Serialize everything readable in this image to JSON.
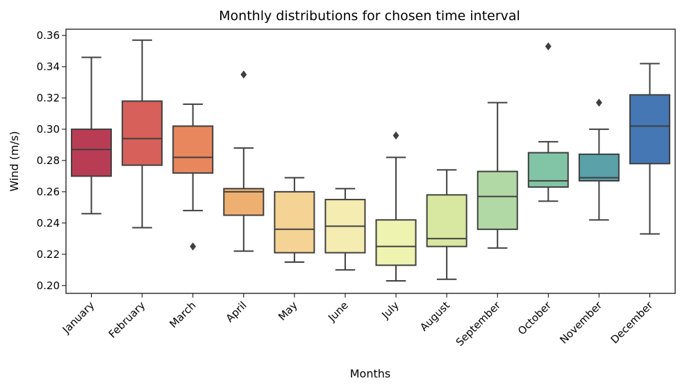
{
  "chart_data": {
    "type": "box",
    "title": "Monthly distributions for chosen time interval",
    "xlabel": "Months",
    "ylabel": "Wind (m/s)",
    "ylim": [
      0.195,
      0.364
    ],
    "yticks": [
      0.2,
      0.22,
      0.24,
      0.26,
      0.28,
      0.3,
      0.32,
      0.34,
      0.36
    ],
    "ytick_labels": [
      "0.20",
      "0.22",
      "0.24",
      "0.26",
      "0.28",
      "0.30",
      "0.32",
      "0.34",
      "0.36"
    ],
    "grid": false,
    "categories": [
      "January",
      "February",
      "March",
      "April",
      "May",
      "June",
      "July",
      "August",
      "September",
      "October",
      "November",
      "December"
    ],
    "boxes": [
      {
        "min": 0.246,
        "q1": 0.27,
        "median": 0.287,
        "q3": 0.3,
        "max": 0.346,
        "outliers": []
      },
      {
        "min": 0.237,
        "q1": 0.277,
        "median": 0.294,
        "q3": 0.318,
        "max": 0.357,
        "outliers": []
      },
      {
        "min": 0.248,
        "q1": 0.272,
        "median": 0.282,
        "q3": 0.302,
        "max": 0.316,
        "outliers": [
          0.225
        ]
      },
      {
        "min": 0.222,
        "q1": 0.245,
        "median": 0.26,
        "q3": 0.262,
        "max": 0.288,
        "outliers": [
          0.335
        ]
      },
      {
        "min": 0.215,
        "q1": 0.221,
        "median": 0.236,
        "q3": 0.26,
        "max": 0.269,
        "outliers": []
      },
      {
        "min": 0.21,
        "q1": 0.221,
        "median": 0.238,
        "q3": 0.255,
        "max": 0.262,
        "outliers": []
      },
      {
        "min": 0.203,
        "q1": 0.213,
        "median": 0.225,
        "q3": 0.242,
        "max": 0.282,
        "outliers": [
          0.296
        ]
      },
      {
        "min": 0.204,
        "q1": 0.225,
        "median": 0.23,
        "q3": 0.258,
        "max": 0.274,
        "outliers": []
      },
      {
        "min": 0.224,
        "q1": 0.236,
        "median": 0.257,
        "q3": 0.273,
        "max": 0.317,
        "outliers": []
      },
      {
        "min": 0.254,
        "q1": 0.263,
        "median": 0.267,
        "q3": 0.285,
        "max": 0.292,
        "outliers": [
          0.353
        ]
      },
      {
        "min": 0.242,
        "q1": 0.267,
        "median": 0.269,
        "q3": 0.284,
        "max": 0.3,
        "outliers": [
          0.317
        ]
      },
      {
        "min": 0.233,
        "q1": 0.278,
        "median": 0.302,
        "q3": 0.322,
        "max": 0.342,
        "outliers": []
      }
    ],
    "colors": [
      "#b93c55",
      "#d7605a",
      "#e8875e",
      "#eeb070",
      "#f4d394",
      "#f4ecb0",
      "#eff3b0",
      "#d9e8a0",
      "#b1d9a5",
      "#82c4a6",
      "#5aa1aa",
      "#4477b3"
    ],
    "line_color": "#3f3f3f"
  }
}
